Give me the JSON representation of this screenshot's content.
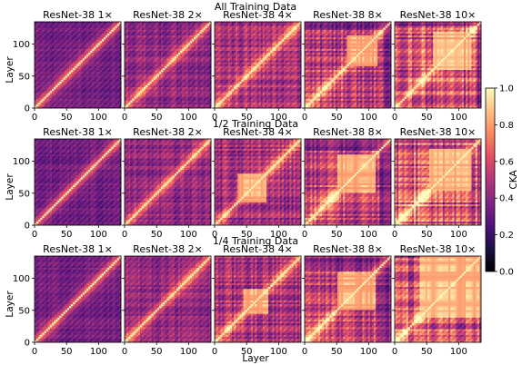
{
  "chart_data": {
    "type": "heatmap",
    "layout": {
      "rows": 3,
      "cols": 5
    },
    "row_titles": [
      "All Training Data",
      "1/2 Training Data",
      "1/4 Training Data"
    ],
    "panel_titles": [
      [
        "ResNet-38 1×",
        "ResNet-38 2×",
        "ResNet-38 4×",
        "ResNet-38 8×",
        "ResNet-38 10×"
      ],
      [
        "ResNet-38 1×",
        "ResNet-38 2×",
        "ResNet-38 4×",
        "ResNet-38 8×",
        "ResNet-38 10×"
      ],
      [
        "ResNet-38 1×",
        "ResNet-38 2×",
        "ResNet-38 4×",
        "ResNet-38 8×",
        "ResNet-38 10×"
      ]
    ],
    "xlabel": "Layer",
    "ylabel": "Layer",
    "x_range": [
      0,
      135
    ],
    "y_range": [
      0,
      135
    ],
    "x_ticks": [
      0,
      50,
      100
    ],
    "y_ticks": [
      0,
      50,
      100
    ],
    "x_tick_labels": [
      "0",
      "50",
      "100"
    ],
    "y_tick_labels": [
      "0",
      "50",
      "100"
    ],
    "colorbar": {
      "label": "CKA",
      "range": [
        0,
        1
      ],
      "ticks": [
        0.0,
        0.2,
        0.4,
        0.6,
        0.8,
        1.0
      ],
      "tick_labels": [
        "0.0",
        "0.2",
        "0.4",
        "0.6",
        "0.8",
        "1.0"
      ],
      "colormap": "magma"
    },
    "block_structure": [
      [
        null,
        null,
        null,
        [
          65,
          115
        ],
        [
          60,
          120
        ]
      ],
      [
        null,
        null,
        [
          35,
          80
        ],
        [
          50,
          110
        ],
        [
          55,
          120
        ]
      ],
      [
        null,
        null,
        [
          45,
          85
        ],
        [
          50,
          110
        ],
        [
          40,
          135
        ]
      ]
    ]
  }
}
